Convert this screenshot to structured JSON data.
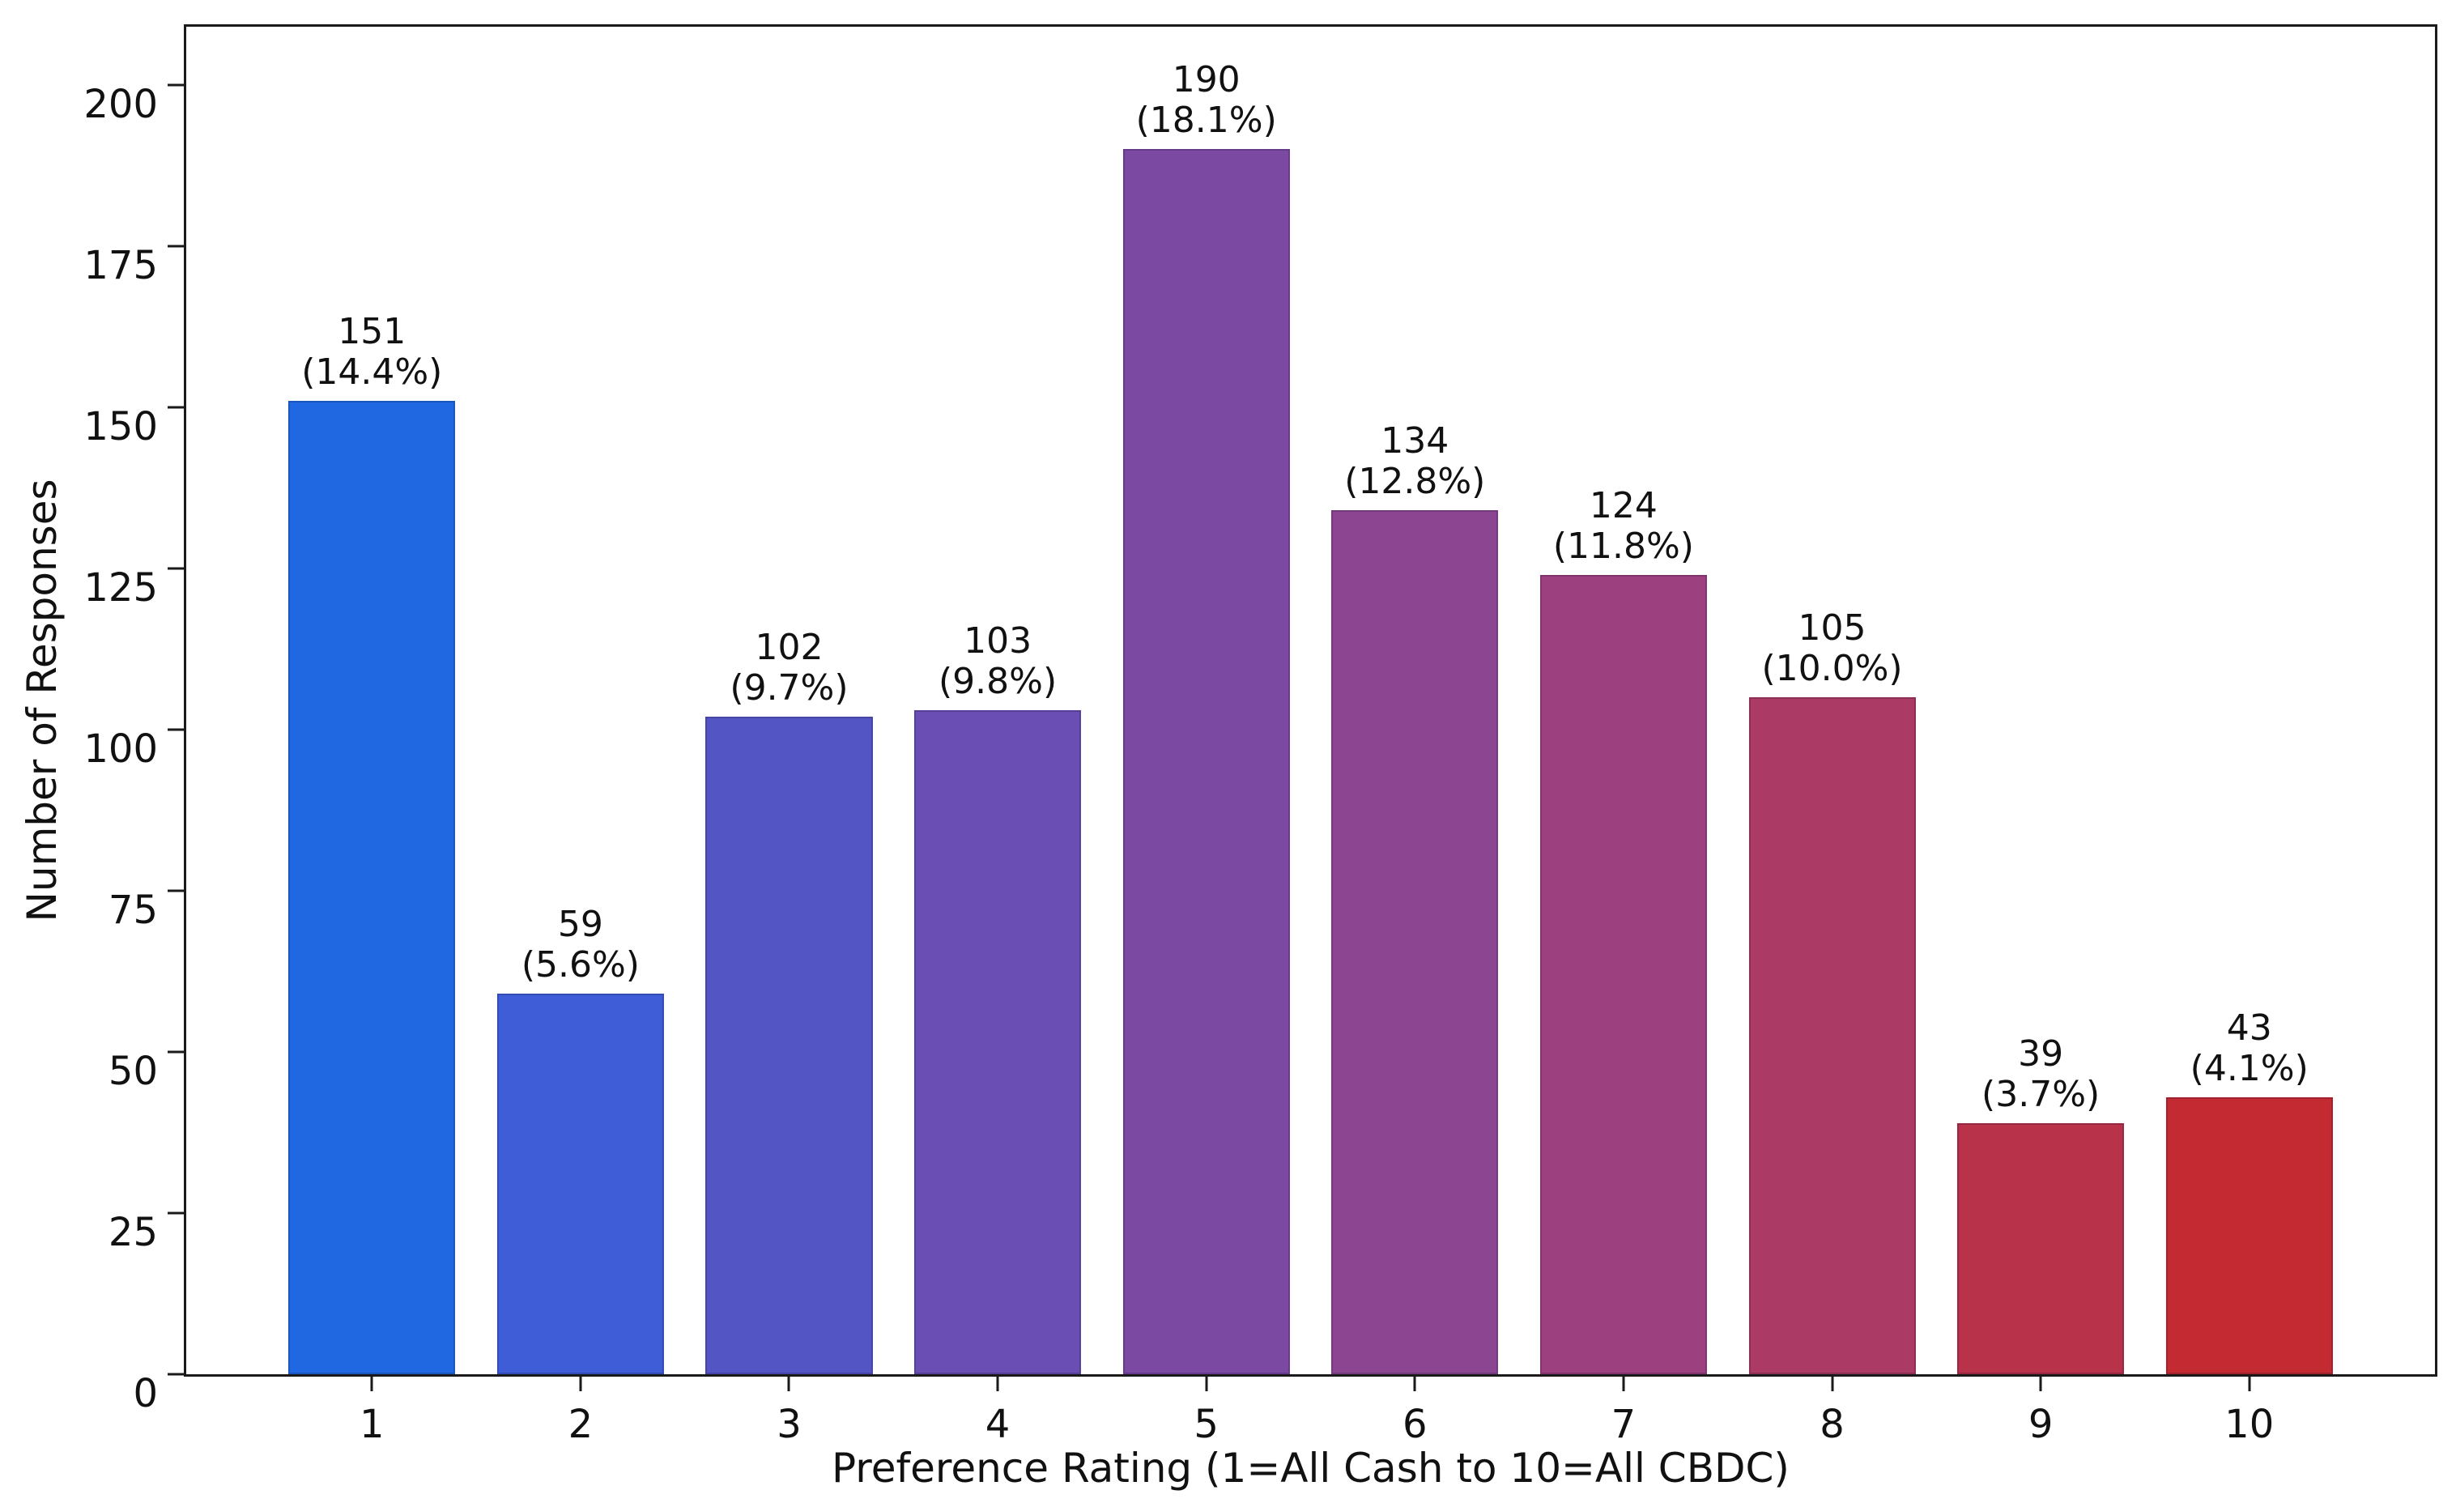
{
  "chart_data": {
    "type": "bar",
    "title": "",
    "xlabel": "Preference Rating (1=All Cash to 10=All CBDC)",
    "ylabel": "Number of Responses",
    "categories": [
      "1",
      "2",
      "3",
      "4",
      "5",
      "6",
      "7",
      "8",
      "9",
      "10"
    ],
    "values": [
      151,
      59,
      102,
      103,
      190,
      134,
      124,
      105,
      39,
      43
    ],
    "percent_labels": [
      "(14.4%)",
      "(5.6%)",
      "(9.7%)",
      "(9.8%)",
      "(18.1%)",
      "(12.8%)",
      "(11.8%)",
      "(10.0%)",
      "(3.7%)",
      "(4.1%)"
    ],
    "bar_colors": [
      "#2068e2",
      "#3f5dd6",
      "#5355c4",
      "#6a4eb3",
      "#7b49a2",
      "#8c4691",
      "#9d4080",
      "#ab3a64",
      "#b8334a",
      "#c42a32"
    ],
    "yticks": [
      0,
      25,
      50,
      75,
      100,
      125,
      150,
      175,
      200
    ],
    "ylim": [
      0,
      209
    ],
    "xlim": [
      0.11,
      10.89
    ],
    "x_positions": [
      1,
      2,
      3,
      4,
      5,
      6,
      7,
      8,
      9,
      10
    ],
    "bar_width_units": 0.8,
    "grid": false,
    "legend_position": "none",
    "plot_background": "#ffffff",
    "spine_color": "#1a1a1a",
    "text_color": "#111111"
  }
}
